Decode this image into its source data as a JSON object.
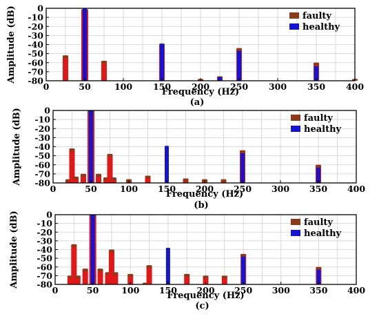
{
  "chart_data": [
    {
      "type": "bar",
      "caption": "(a)",
      "xlabel": "Frequency (Hz)",
      "ylabel": "Amplitude (dB)",
      "xlim": [
        0,
        400
      ],
      "ylim": [
        -80,
        0
      ],
      "xticks": [
        "0",
        "50",
        "100",
        "150",
        "200",
        "250",
        "300",
        "350",
        "400"
      ],
      "yticks": [
        "0",
        "-10",
        "-20",
        "-30",
        "-40",
        "-50",
        "-60",
        "-70",
        "-80"
      ],
      "grid": true,
      "legend_position": "top-right",
      "series": [
        {
          "name": "faulty",
          "color": "#8b3a1a",
          "points": [
            [
              25,
              -52
            ],
            [
              50,
              -1
            ],
            [
              75,
              -58
            ],
            [
              150,
              -39
            ],
            [
              200,
              -78
            ],
            [
              225,
              -75
            ],
            [
              250,
              -44
            ],
            [
              350,
              -60
            ],
            [
              400,
              -78
            ]
          ]
        },
        {
          "name": "healthy",
          "color": "#1515d0",
          "points": [
            [
              50,
              0
            ],
            [
              150,
              -39
            ],
            [
              225,
              -76
            ],
            [
              250,
              -47
            ],
            [
              350,
              -64
            ]
          ]
        }
      ]
    },
    {
      "type": "bar",
      "caption": "(b)",
      "xlabel": "Frequency (Hz)",
      "ylabel": "Amplitude (dB)",
      "xlim": [
        0,
        400
      ],
      "ylim": [
        -80,
        0
      ],
      "xticks": [
        "0",
        "50",
        "100",
        "150",
        "200",
        "250",
        "300",
        "350",
        "400"
      ],
      "yticks": [
        "0",
        "-10",
        "-20",
        "-30",
        "-40",
        "-50",
        "-60",
        "-70",
        "-80"
      ],
      "grid": true,
      "legend_position": "top-right",
      "series": [
        {
          "name": "faulty",
          "color": "#8b3a1a",
          "points": [
            [
              20,
              -76
            ],
            [
              25,
              -42
            ],
            [
              30,
              -73
            ],
            [
              40,
              -70
            ],
            [
              50,
              0
            ],
            [
              60,
              -70
            ],
            [
              70,
              -74
            ],
            [
              75,
              -48
            ],
            [
              80,
              -74
            ],
            [
              100,
              -76
            ],
            [
              125,
              -72
            ],
            [
              175,
              -75
            ],
            [
              200,
              -76
            ],
            [
              225,
              -76
            ],
            [
              250,
              -44
            ],
            [
              350,
              -60
            ]
          ]
        },
        {
          "name": "healthy",
          "color": "#1515d0",
          "points": [
            [
              50,
              0
            ],
            [
              150,
              -39
            ],
            [
              250,
              -47
            ],
            [
              350,
              -63
            ]
          ]
        }
      ]
    },
    {
      "type": "bar",
      "caption": "(c)",
      "xlabel": "Frequency (Hz)",
      "ylabel": "Amplitude (dB)",
      "xlim": [
        0,
        400
      ],
      "ylim": [
        -80,
        0
      ],
      "xticks": [
        "0",
        "50",
        "100",
        "150",
        "200",
        "250",
        "300",
        "350",
        "400"
      ],
      "yticks": [
        "0",
        "-10",
        "-20",
        "-30",
        "-40",
        "-50",
        "-60",
        "-70",
        "-80"
      ],
      "grid": true,
      "legend_position": "top-right",
      "series": [
        {
          "name": "faulty",
          "color": "#8b3a1a",
          "points": [
            [
              20,
              -70
            ],
            [
              25,
              -34
            ],
            [
              30,
              -70
            ],
            [
              40,
              -62
            ],
            [
              50,
              0
            ],
            [
              60,
              -62
            ],
            [
              70,
              -66
            ],
            [
              75,
              -40
            ],
            [
              80,
              -66
            ],
            [
              100,
              -68
            ],
            [
              120,
              -78
            ],
            [
              125,
              -58
            ],
            [
              175,
              -68
            ],
            [
              200,
              -70
            ],
            [
              225,
              -70
            ],
            [
              250,
              -45
            ],
            [
              350,
              -60
            ]
          ]
        },
        {
          "name": "healthy",
          "color": "#1515d0",
          "points": [
            [
              50,
              0
            ],
            [
              150,
              -38
            ],
            [
              250,
              -48
            ],
            [
              350,
              -63
            ]
          ]
        }
      ]
    }
  ]
}
